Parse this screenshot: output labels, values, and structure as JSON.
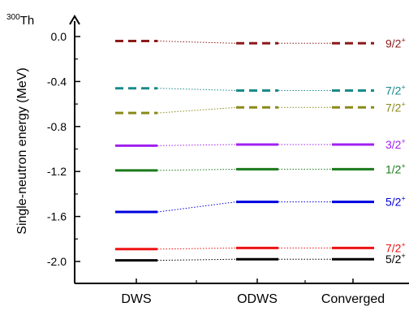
{
  "chart_data": {
    "type": "line",
    "nucleus": {
      "mass_number": "300",
      "symbol": "Th"
    },
    "title": "",
    "ylabel": "Single-neutron energy (MeV)",
    "xlabel": "",
    "categories": [
      "DWS",
      "ODWS",
      "Converged"
    ],
    "ylim": [
      -2.2,
      0.2
    ],
    "yticks": [
      0.0,
      -0.4,
      -0.8,
      -1.2,
      -1.6,
      -2.0
    ],
    "ytick_labels": [
      "0.0",
      "-0.4",
      "-0.8",
      "-1.2",
      "-1.6",
      "-2.0"
    ],
    "grid": false,
    "legend": "none",
    "series": [
      {
        "label_main": "9/2",
        "label_sup": "+",
        "color": "#8b1a1a",
        "style": "dashed",
        "values": [
          -0.04,
          -0.06,
          -0.06
        ]
      },
      {
        "label_main": "7/2",
        "label_sup": "+",
        "color": "#1a8a8a",
        "style": "dashed",
        "values": [
          -0.46,
          -0.48,
          -0.48
        ]
      },
      {
        "label_main": "7/2",
        "label_sup": "+",
        "color": "#8a8a1a",
        "style": "dashed",
        "values": [
          -0.68,
          -0.63,
          -0.63
        ]
      },
      {
        "label_main": "3/2",
        "label_sup": "+",
        "color": "#a020f0",
        "style": "solid",
        "values": [
          -0.97,
          -0.96,
          -0.96
        ]
      },
      {
        "label_main": "1/2",
        "label_sup": "+",
        "color": "#1a7a1a",
        "style": "solid",
        "values": [
          -1.19,
          -1.18,
          -1.18
        ]
      },
      {
        "label_main": "5/2",
        "label_sup": "+",
        "color": "#0000dd",
        "style": "solid",
        "values": [
          -1.56,
          -1.47,
          -1.47
        ]
      },
      {
        "label_main": "7/2",
        "label_sup": "+",
        "color": "#ee1111",
        "style": "solid",
        "values": [
          -1.89,
          -1.88,
          -1.88
        ]
      },
      {
        "label_main": "5/2",
        "label_sup": "+",
        "color": "#000000",
        "style": "solid",
        "values": [
          -1.99,
          -1.98,
          -1.98
        ]
      }
    ]
  }
}
